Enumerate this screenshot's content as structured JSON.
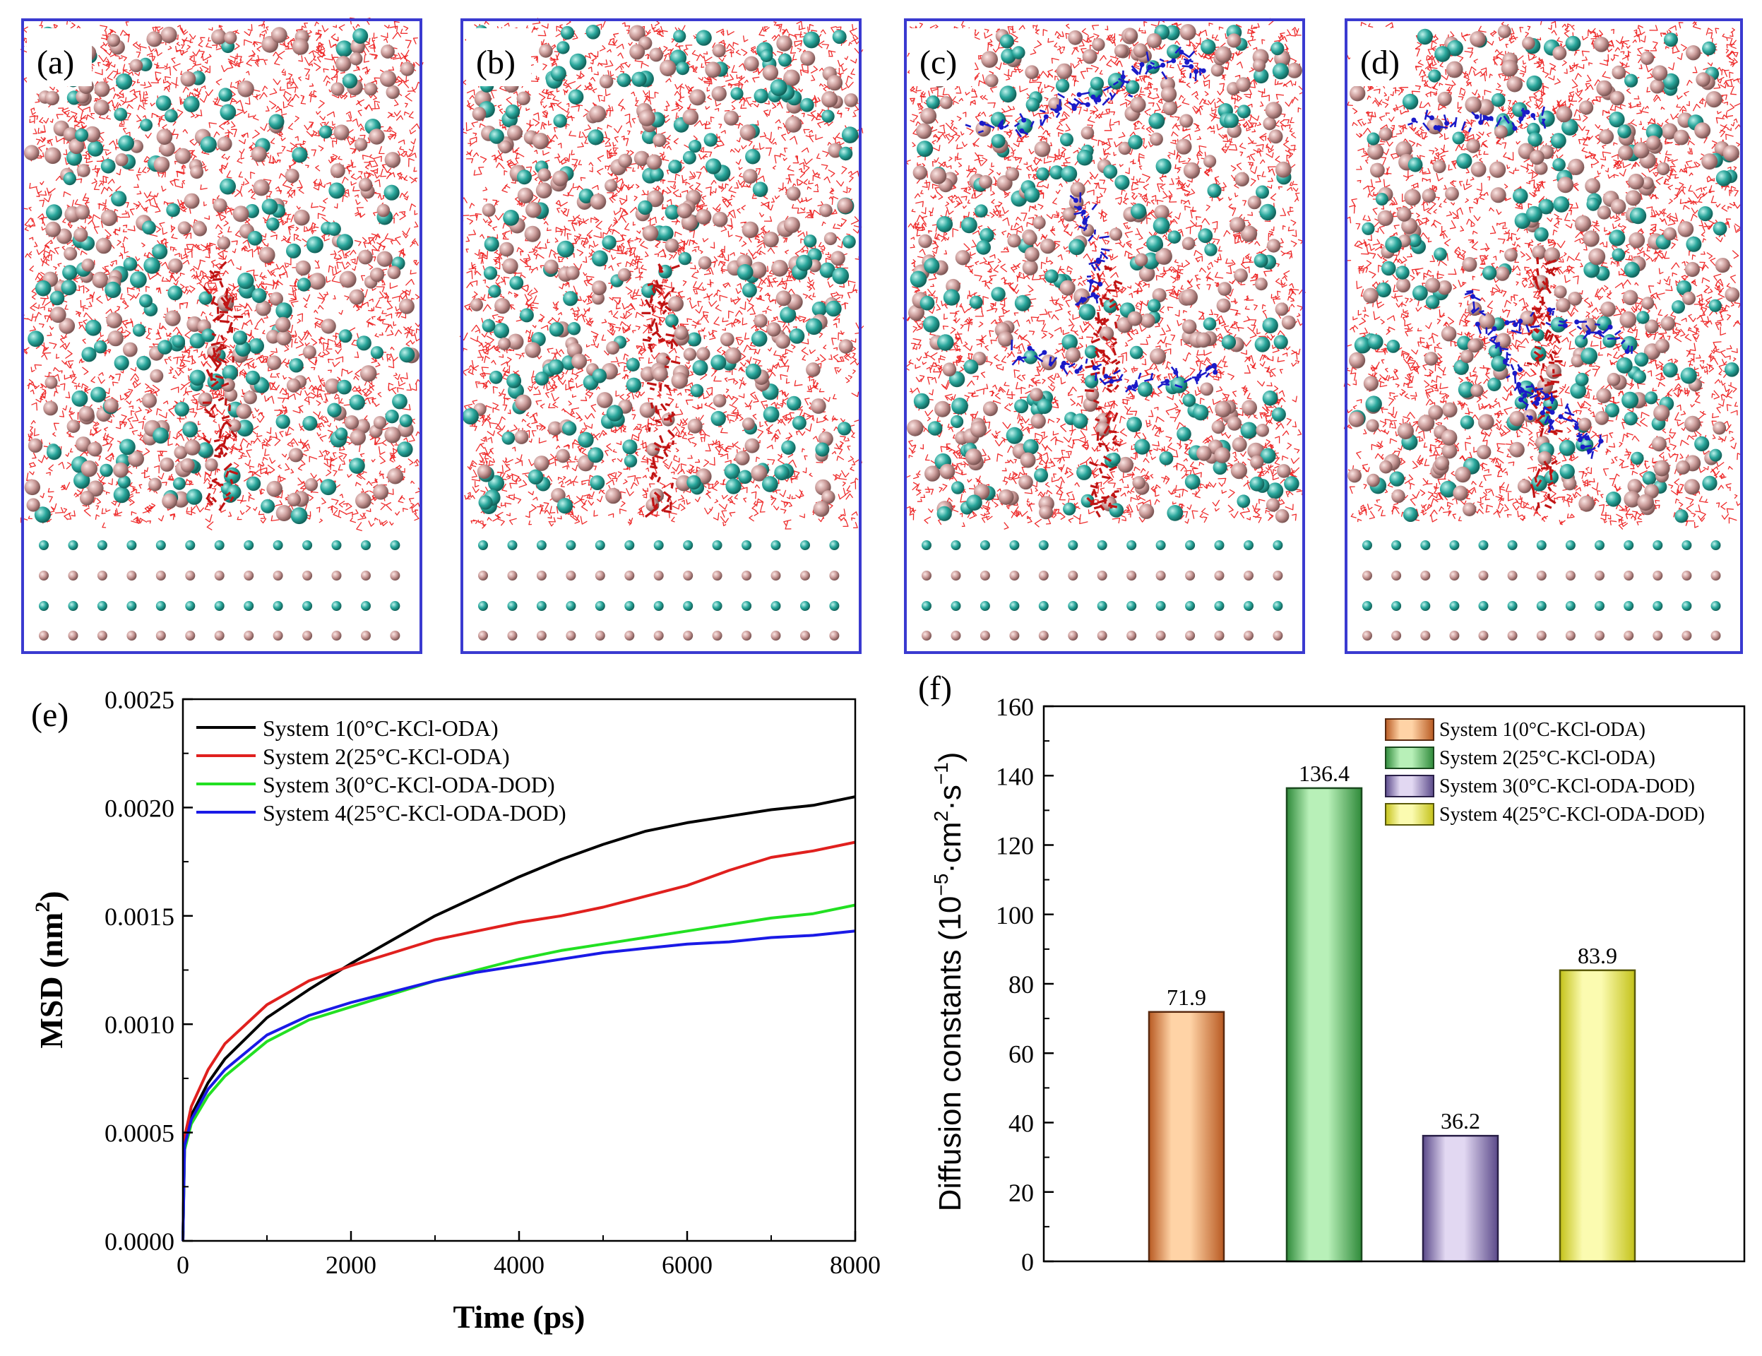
{
  "panels": {
    "a": {
      "label": "(a)"
    },
    "b": {
      "label": "(b)"
    },
    "c": {
      "label": "(c)"
    },
    "d": {
      "label": "(d)"
    },
    "e": {
      "label": "(e)"
    },
    "f": {
      "label": "(f)"
    }
  },
  "colors": {
    "frame": "#3a3ad0",
    "water": "#ee2b2b",
    "k_ion": "#2aa79c",
    "cl_ion": "#c99a98",
    "oda": "#c01414",
    "dod": "#1a1ac8"
  },
  "chart_data": [
    {
      "type": "line",
      "panel": "(e)",
      "xlabel": "Time (ps)",
      "ylabel": "MSD (nm²)",
      "ylabel_main": "MSD (nm",
      "ylabel_sup": "2",
      "ylabel_end": ")",
      "xlim": [
        0,
        8000
      ],
      "ylim": [
        0,
        0.0025
      ],
      "xticks": [
        "0",
        "2000",
        "4000",
        "6000",
        "8000"
      ],
      "yticks": [
        "0.0000",
        "0.0005",
        "0.0010",
        "0.0015",
        "0.0020",
        "0.0025"
      ],
      "legend_position": "top-left",
      "series": [
        {
          "name": "System 1(0°C-KCl-ODA)",
          "color": "#000000",
          "x": [
            0,
            20,
            100,
            300,
            500,
            1000,
            1500,
            2000,
            2500,
            3000,
            3500,
            4000,
            4500,
            5000,
            5500,
            6000,
            6500,
            7000,
            7500,
            8000
          ],
          "y": [
            0,
            0.00045,
            0.00058,
            0.00073,
            0.00084,
            0.00103,
            0.00116,
            0.00128,
            0.00139,
            0.0015,
            0.00159,
            0.00168,
            0.00176,
            0.00183,
            0.00189,
            0.00193,
            0.00196,
            0.00199,
            0.00201,
            0.00205
          ]
        },
        {
          "name": "System 2(25°C-KCl-ODA)",
          "color": "#e0201e",
          "x": [
            0,
            20,
            100,
            300,
            500,
            1000,
            1500,
            2000,
            2500,
            3000,
            3500,
            4000,
            4500,
            5000,
            5500,
            6000,
            6500,
            7000,
            7500,
            8000
          ],
          "y": [
            0,
            0.00048,
            0.00062,
            0.00079,
            0.00091,
            0.00109,
            0.0012,
            0.00127,
            0.00133,
            0.00139,
            0.00143,
            0.00147,
            0.0015,
            0.00154,
            0.00159,
            0.00164,
            0.00171,
            0.00177,
            0.0018,
            0.00184
          ]
        },
        {
          "name": "System 3(0°C-KCl-ODA-DOD)",
          "color": "#22e022",
          "x": [
            0,
            20,
            100,
            300,
            500,
            1000,
            1500,
            2000,
            2500,
            3000,
            3500,
            4000,
            4500,
            5000,
            5500,
            6000,
            6500,
            7000,
            7500,
            8000
          ],
          "y": [
            0,
            0.00042,
            0.00054,
            0.00067,
            0.00076,
            0.00092,
            0.00102,
            0.00108,
            0.00114,
            0.0012,
            0.00125,
            0.0013,
            0.00134,
            0.00137,
            0.0014,
            0.00143,
            0.00146,
            0.00149,
            0.00151,
            0.00155
          ]
        },
        {
          "name": "System 4(25°C-KCl-ODA-DOD)",
          "color": "#1a1ae6",
          "x": [
            0,
            20,
            100,
            300,
            500,
            1000,
            1500,
            2000,
            2500,
            3000,
            3500,
            4000,
            4500,
            5000,
            5500,
            6000,
            6500,
            7000,
            7500,
            8000
          ],
          "y": [
            0,
            0.00044,
            0.00056,
            0.0007,
            0.00079,
            0.00095,
            0.00104,
            0.0011,
            0.00115,
            0.0012,
            0.00124,
            0.00127,
            0.0013,
            0.00133,
            0.00135,
            0.00137,
            0.00138,
            0.0014,
            0.00141,
            0.00143
          ]
        }
      ]
    },
    {
      "type": "bar",
      "panel": "(f)",
      "xlabel": "",
      "ylabel": "Diffusion constants (10⁻⁵·cm²·s⁻¹)",
      "ylabel_parts": [
        "Diffusion constants (10",
        "−5",
        "·cm",
        "2",
        "·s",
        "−1",
        ")"
      ],
      "ylim": [
        0,
        160
      ],
      "yticks": [
        "0",
        "20",
        "40",
        "60",
        "80",
        "100",
        "120",
        "140",
        "160"
      ],
      "legend_position": "top-right",
      "categories": [
        "System 1(0°C-KCl-ODA)",
        "System 2(25°C-KCl-ODA)",
        "System 3(0°C-KCl-ODA-DOD)",
        "System 4(25°C-KCl-ODA-DOD)"
      ],
      "values": [
        71.9,
        136.4,
        36.2,
        83.9
      ],
      "value_labels": [
        "71.9",
        "136.4",
        "36.2",
        "83.9"
      ],
      "colors": [
        {
          "light": "#ffd3a6",
          "dark": "#b85a22",
          "edge": "#5a2a10"
        },
        {
          "light": "#b8f0b8",
          "dark": "#2f8a3a",
          "edge": "#1a4a1e"
        },
        {
          "light": "#e2d8f2",
          "dark": "#5b4a8a",
          "edge": "#2a2048"
        },
        {
          "light": "#fbfbb0",
          "dark": "#c4c21a",
          "edge": "#5a5a0a"
        }
      ]
    }
  ]
}
